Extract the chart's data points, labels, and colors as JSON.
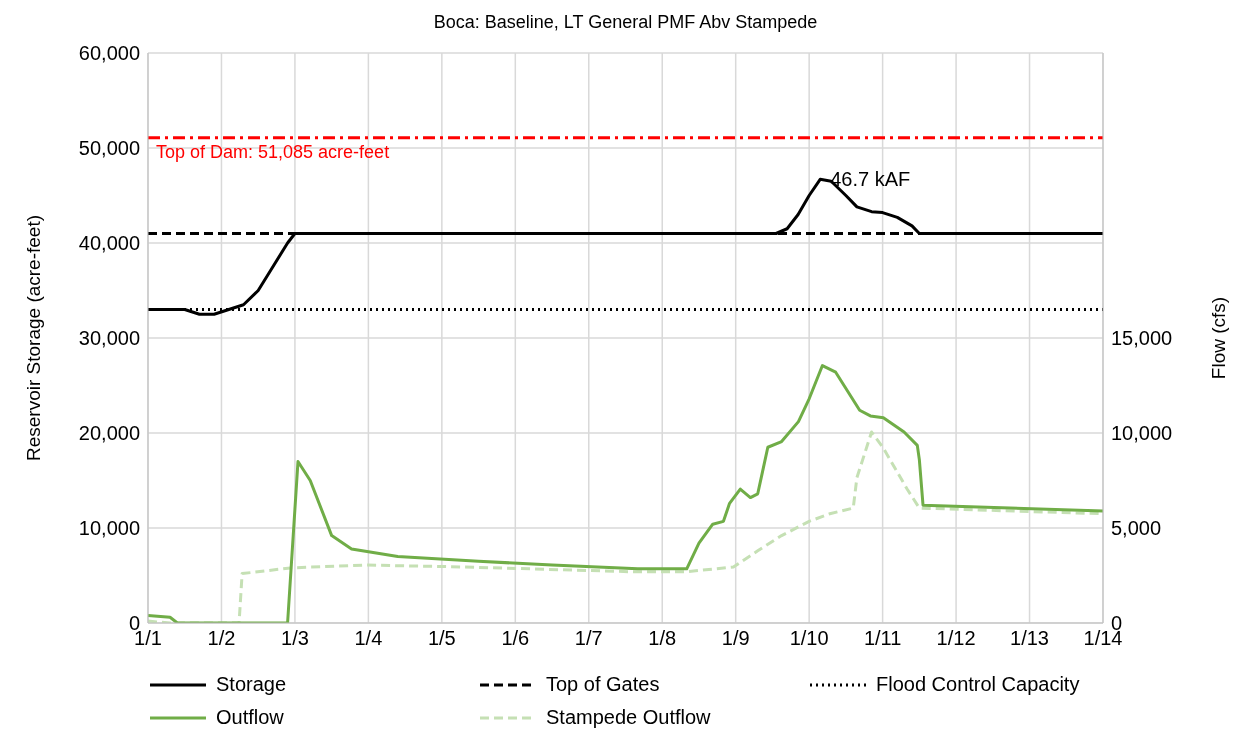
{
  "chart_data": {
    "type": "line",
    "title": "Boca: Baseline, LT General PMF Abv Stampede",
    "ylabel": "Reservoir Storage (acre-feet)",
    "y2label": "Flow (cfs)",
    "xlim": [
      "--01-01",
      "--01-14"
    ],
    "xticks": [
      {
        "value": "--01-01",
        "label": "1/1"
      },
      {
        "value": "--01-02",
        "label": "1/2"
      },
      {
        "value": "--01-03",
        "label": "1/3"
      },
      {
        "value": "--01-04",
        "label": "1/4"
      },
      {
        "value": "--01-05",
        "label": "1/5"
      },
      {
        "value": "--01-06",
        "label": "1/6"
      },
      {
        "value": "--01-07",
        "label": "1/7"
      },
      {
        "value": "--01-08",
        "label": "1/8"
      },
      {
        "value": "--01-09",
        "label": "1/9"
      },
      {
        "value": "--01-10",
        "label": "1/10"
      },
      {
        "value": "--01-11",
        "label": "1/11"
      },
      {
        "value": "--01-12",
        "label": "1/12"
      },
      {
        "value": "--01-13",
        "label": "1/13"
      },
      {
        "value": "--01-14",
        "label": "1/14"
      }
    ],
    "ylim": [
      0,
      60000
    ],
    "yticks": [
      0,
      {
        "value": 10000,
        "label": "10,000"
      },
      {
        "value": 20000,
        "label": "20,000"
      },
      {
        "value": 30000,
        "label": "30,000"
      },
      {
        "value": 40000,
        "label": "40,000"
      },
      {
        "value": 50000,
        "label": "50,000"
      },
      {
        "value": 60000,
        "label": "60,000"
      }
    ],
    "y2lim": [
      0,
      30000
    ],
    "y2ticks": [
      0,
      {
        "value": 5000,
        "label": "5,000"
      },
      {
        "value": 10000,
        "label": "10,000"
      },
      {
        "value": 15000,
        "label": "15,000"
      }
    ],
    "grid": true,
    "legend": "bottom",
    "marker": "none",
    "series": [
      {
        "name": "Storage",
        "color": "#000000",
        "line_style": "solid",
        "x": [
          "--01-01",
          "--01-01T12:00",
          "--01-01T16:48",
          "--01-01T21:36",
          "--01-02T02:24",
          "--01-02T07:12",
          "--01-02T12:00",
          "--01-02T16:48",
          "--01-02T21:36",
          "--01-03",
          "--01-09T13:12",
          "--01-09T16:48",
          "--01-09T20:24",
          "--01-10",
          "--01-10T03:36",
          "--01-10T07:12",
          "--01-10T12:00",
          "--01-10T15:36",
          "--01-10T20:24",
          "--01-11",
          "--01-11T04:48",
          "--01-11T09:36",
          "--01-11T12:00",
          "--01-14"
        ],
        "values": [
          33000,
          33000,
          32500,
          32500,
          33000,
          33500,
          35000,
          37500,
          40000,
          41000,
          41000,
          41500,
          43000,
          45000,
          46700,
          46500,
          45000,
          43800,
          43300,
          43200,
          42700,
          41800,
          41000,
          41000
        ]
      },
      {
        "name": "Top of Gates",
        "color": "#000000",
        "line_style": "dashed",
        "x": [
          "--01-01",
          "--01-14"
        ],
        "values": [
          41000,
          41000
        ]
      },
      {
        "name": "Flood Control Capacity",
        "color": "#000000",
        "line_style": "dotted",
        "x": [
          "--01-01",
          "--01-14"
        ],
        "values": [
          33000,
          33000
        ]
      },
      {
        "name": "Outflow",
        "color": "#70ad47",
        "line_style": "solid",
        "axis": "y2",
        "x": [
          "--01-01",
          "--01-01T07:12",
          "--01-01T09:36",
          "--01-02T21:36",
          "--01-03T01:00",
          "--01-03T05:00",
          "--01-03T12:00",
          "--01-03T18:30",
          "--01-04T09:36",
          "--01-05T12:00",
          "--01-06T12:00",
          "--01-07T16:00",
          "--01-08T08:00",
          "--01-08T12:00",
          "--01-08T16:30",
          "--01-08T20:00",
          "--01-08T22:00",
          "--01-09T01:30",
          "--01-09T04:48",
          "--01-09T07:12",
          "--01-09T10:30",
          "--01-09T15:00",
          "--01-09T20:30",
          "--01-10",
          "--01-10T04:20",
          "--01-10T08:40",
          "--01-10T16:30",
          "--01-10T20:00",
          "--01-11T00:15",
          "--01-11T07:00",
          "--01-11T11:20",
          "--01-11T12:00",
          "--01-11T13:12",
          "--01-12T07:12",
          "--01-14"
        ],
        "values": [
          400,
          300,
          0,
          0,
          8500,
          7500,
          4600,
          3900,
          3500,
          3250,
          3050,
          2850,
          2850,
          4200,
          5200,
          5350,
          6300,
          7050,
          6600,
          6800,
          9250,
          9550,
          10600,
          11800,
          13550,
          13200,
          11200,
          10900,
          10800,
          10050,
          9350,
          8600,
          6200,
          6100,
          5900
        ]
      },
      {
        "name": "Stampede Outflow",
        "color": "#c5e0b4",
        "line_style": "dashed",
        "axis": "y2",
        "x": [
          "--01-01",
          "--01-01T07:12",
          "--01-02T05:45",
          "--01-02T06:45",
          "--01-02T22:30",
          "--01-03T22:50",
          "--01-05T07:12",
          "--01-07T13:40",
          "--01-08T08:00",
          "--01-08T23:15",
          "--01-09T07:12",
          "--01-09T15:00",
          "--01-10",
          "--01-10T06:45",
          "--01-10T14:24",
          "--01-10T15:36",
          "--01-10T20:24",
          "--01-11T00:15",
          "--01-11T08:00",
          "--01-11T12:00",
          "--01-12T07:12",
          "--01-14"
        ],
        "values": [
          100,
          0,
          0,
          2600,
          2900,
          3050,
          2950,
          2700,
          2700,
          2950,
          3800,
          4600,
          5350,
          5750,
          6050,
          7650,
          10050,
          9200,
          7050,
          6050,
          5950,
          5750
        ]
      }
    ],
    "ref_lines": [
      {
        "axis": "y",
        "value": 51085,
        "label": "Top of Dam: 51,085 acre-feet",
        "color": "#ff0000",
        "line_style": "dashdot"
      }
    ],
    "annotations": [
      {
        "text": "46.7 kAF",
        "x": "--01-10T03:36",
        "y": 46700
      }
    ]
  }
}
